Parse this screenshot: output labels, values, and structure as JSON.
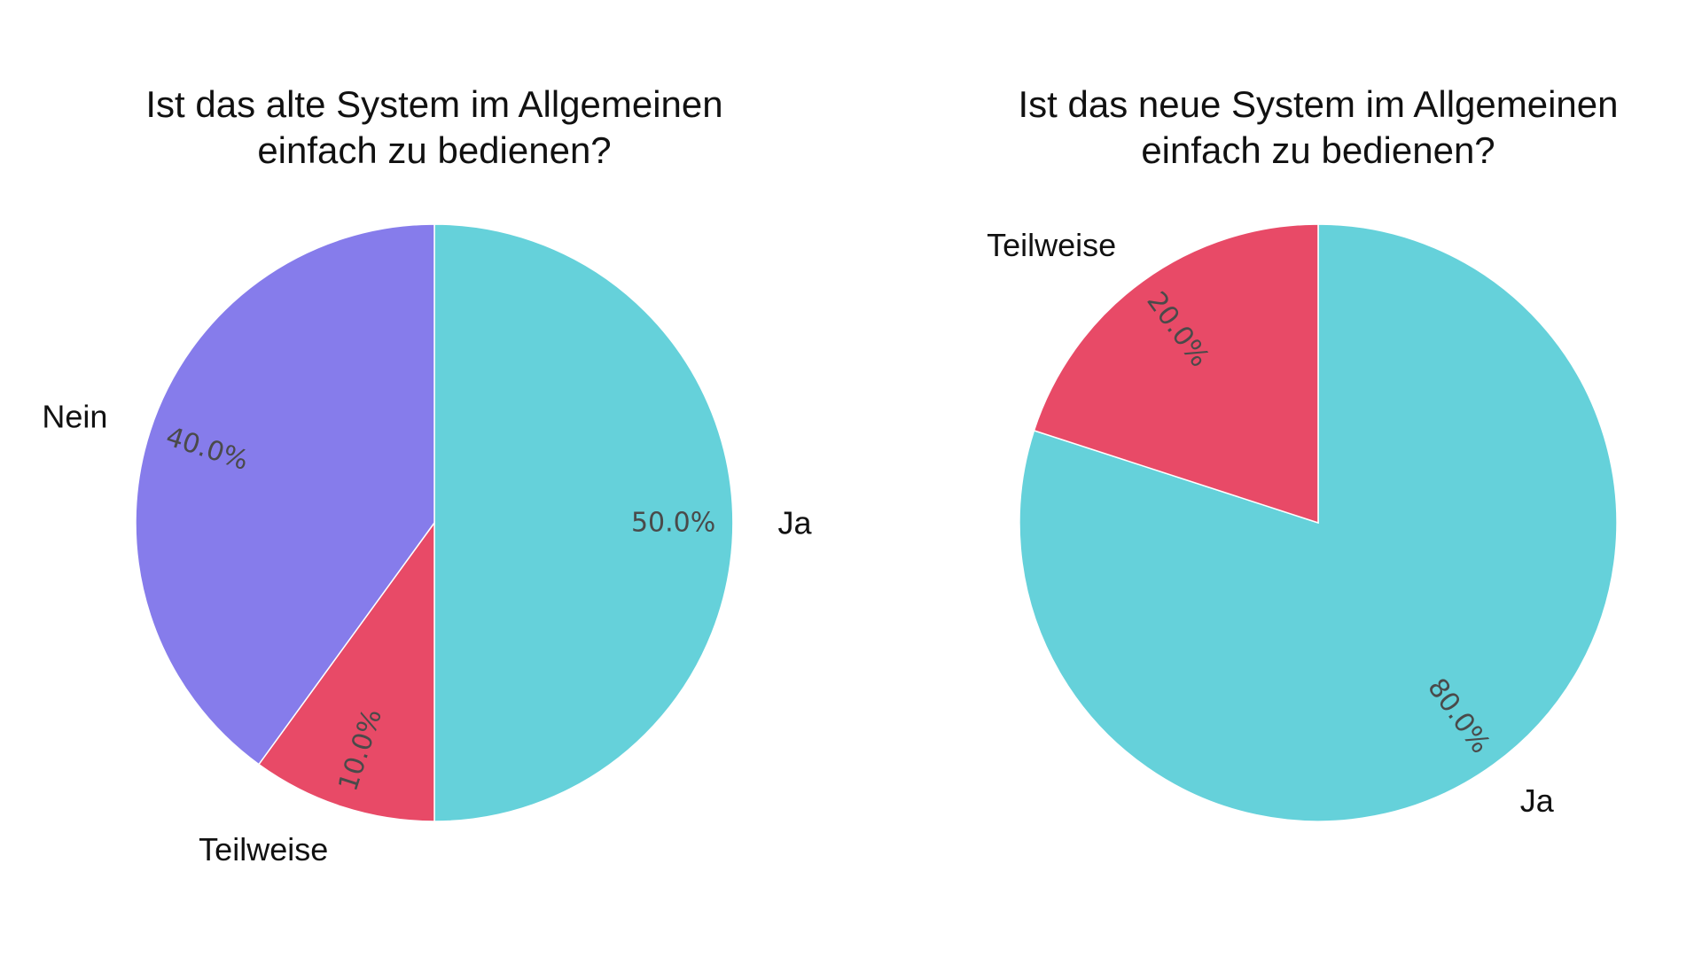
{
  "chart_data": [
    {
      "type": "pie",
      "title_lines": [
        "Ist das alte System im Allgemeinen",
        "einfach zu bedienen?"
      ],
      "labels": [
        "Ja",
        "Teilweise",
        "Nein"
      ],
      "values": [
        50.0,
        10.0,
        40.0
      ],
      "value_labels": [
        "50.0%",
        "10.0%",
        "40.0%"
      ],
      "colors": [
        "#65d1da",
        "#e84a67",
        "#867ceb"
      ]
    },
    {
      "type": "pie",
      "title_lines": [
        "Ist das neue System im Allgemeinen",
        "einfach zu bedienen?"
      ],
      "labels": [
        "Ja",
        "Teilweise"
      ],
      "values": [
        80.0,
        20.0
      ],
      "value_labels": [
        "80.0%",
        "20.0%"
      ],
      "colors": [
        "#65d1da",
        "#e84a67"
      ]
    }
  ]
}
